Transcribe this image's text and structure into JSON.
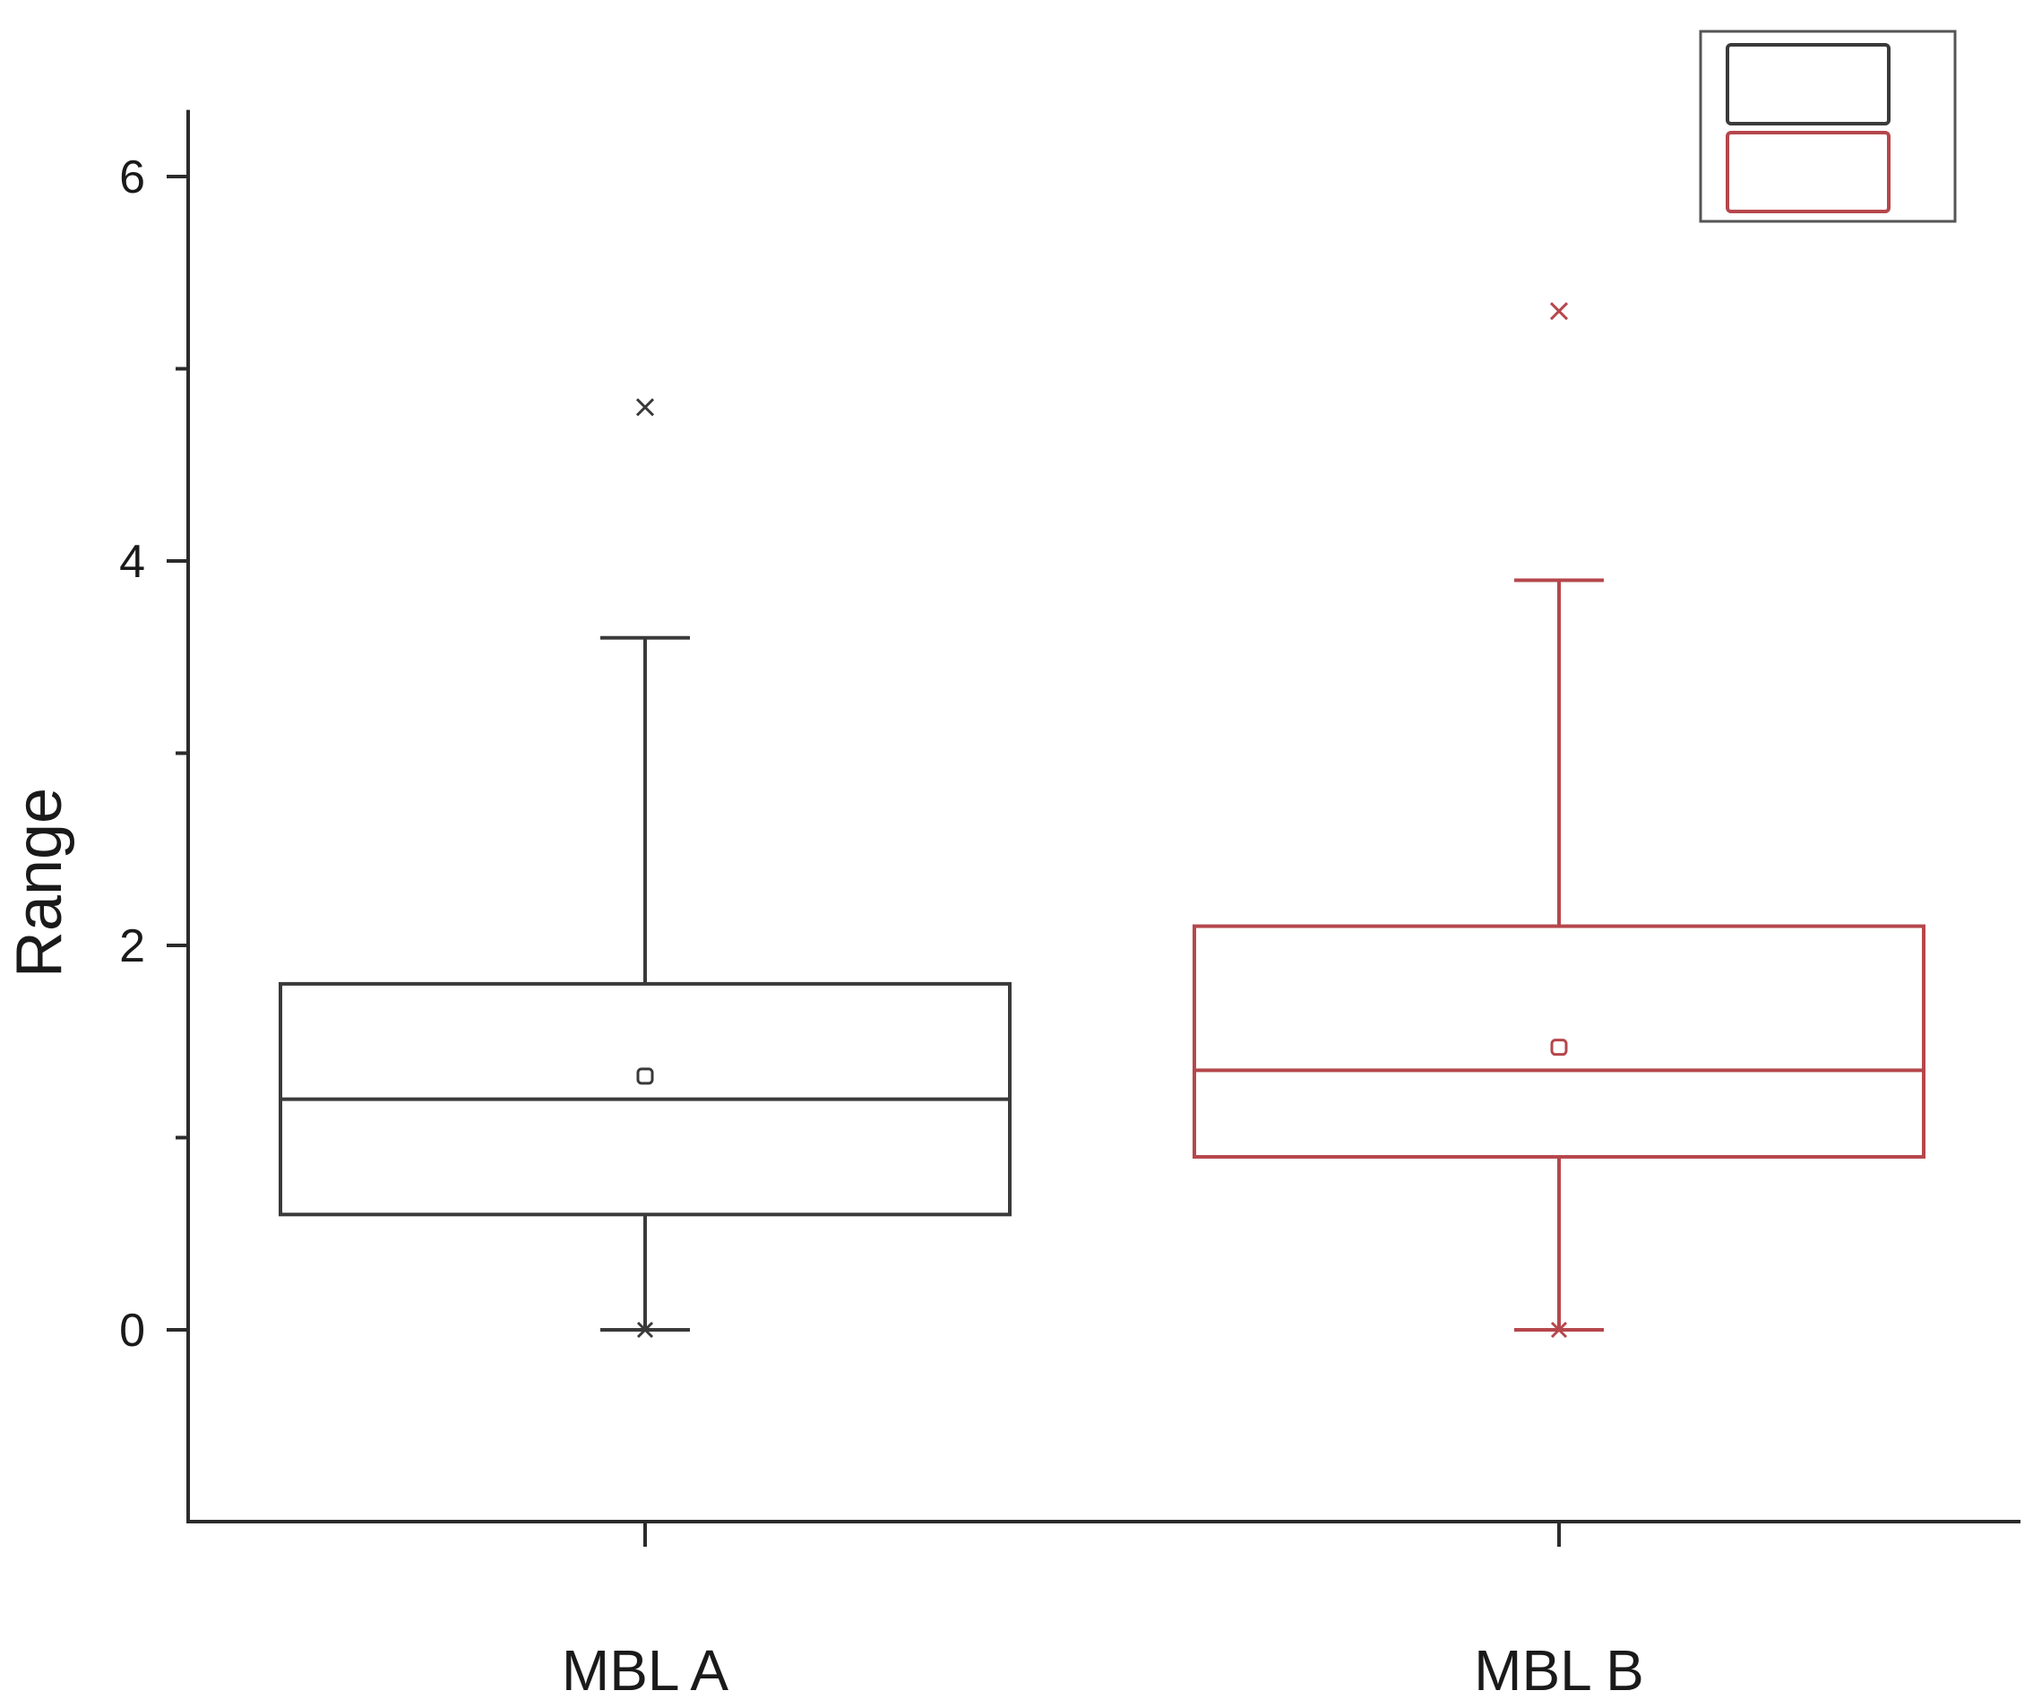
{
  "chart_data": {
    "type": "box",
    "title": "",
    "xlabel": "",
    "ylabel": "Range",
    "ylim": [
      -1,
      6.3
    ],
    "yticks": [
      0,
      2,
      4,
      6
    ],
    "categories": [
      "MBL A",
      "MBL B"
    ],
    "series": [
      {
        "category": "MBL A",
        "color": "#3a3a3a",
        "whisker_low": 0,
        "q1": 0.6,
        "median": 1.2,
        "q3": 1.8,
        "whisker_high": 3.6,
        "mean": 1.32,
        "outliers_max": [
          4.8
        ],
        "min_marker": 0
      },
      {
        "category": "MBL B",
        "color": "#b5474c",
        "whisker_low": 0,
        "q1": 0.9,
        "median": 1.35,
        "q3": 2.1,
        "whisker_high": 3.9,
        "mean": 1.47,
        "outliers_max": [
          5.3
        ],
        "min_marker": 0
      }
    ],
    "grid": false,
    "legend": {
      "placement": "top-right",
      "entries": [
        "",
        ""
      ],
      "colors": [
        "#3a3a3a",
        "#b5474c"
      ]
    }
  }
}
